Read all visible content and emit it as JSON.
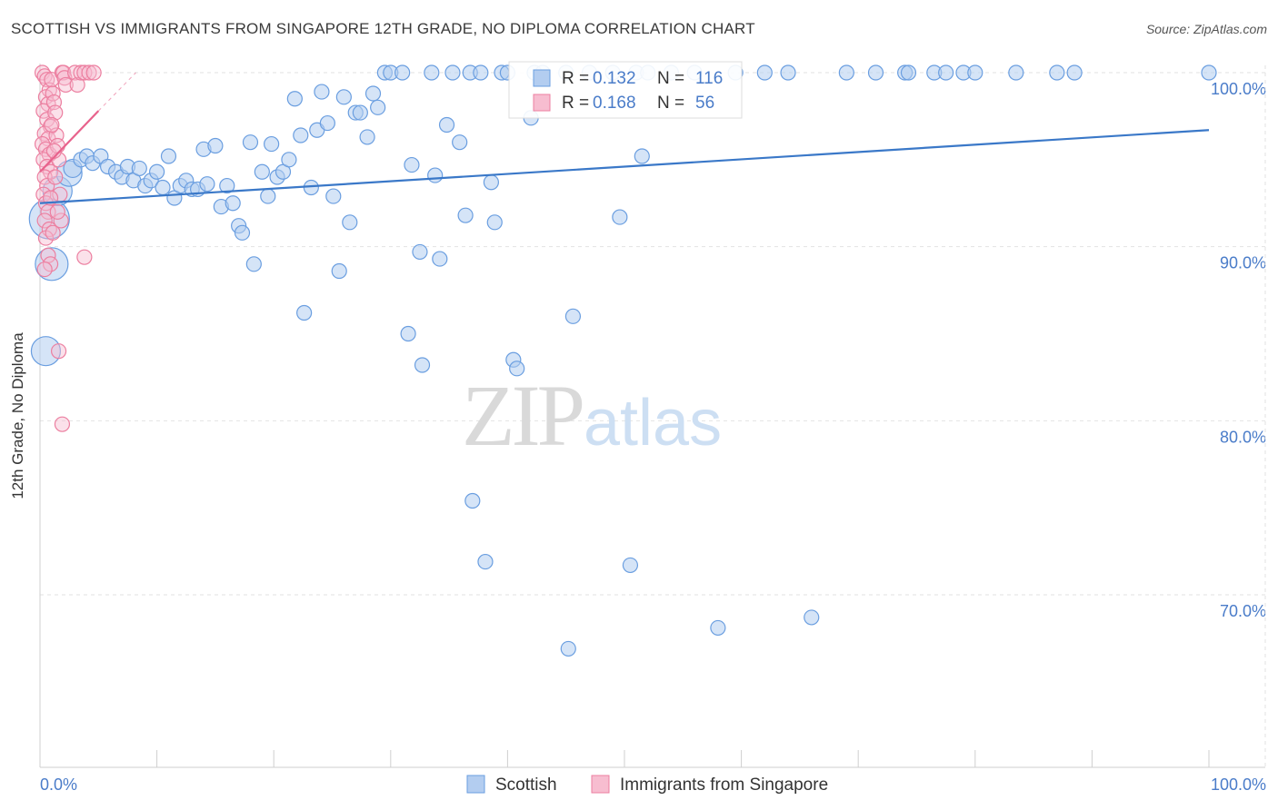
{
  "title": "SCOTTISH VS IMMIGRANTS FROM SINGAPORE 12TH GRADE, NO DIPLOMA CORRELATION CHART",
  "source": "Source: ZipAtlas.com",
  "watermark": {
    "zip": "ZIP",
    "atlas": "atlas"
  },
  "colors": {
    "scottish": "#6a9ee0",
    "scottish_fill": "#b3cdf0",
    "singapore": "#ec7fa0",
    "singapore_fill": "#f7bdd0",
    "trend_blue": "#3a78c8",
    "trend_pink": "#e8628c",
    "axis_text": "#4a7cc9",
    "grid": "#e2e2e2"
  },
  "legend_box": {
    "rows": [
      {
        "r_label": "R =",
        "r_value": "0.132",
        "n_label": "N =",
        "n_value": "116"
      },
      {
        "r_label": "R =",
        "r_value": "0.168",
        "n_label": "N =",
        "n_value": "56"
      }
    ]
  },
  "chart_data": {
    "type": "scatter",
    "title": "SCOTTISH VS IMMIGRANTS FROM SINGAPORE 12TH GRADE, NO DIPLOMA CORRELATION CHART",
    "xlabel": "",
    "ylabel": "12th Grade, No Diploma",
    "xlim": [
      0,
      100
    ],
    "ylim": [
      61,
      101
    ],
    "x_tick_labels": [
      "0.0%",
      "100.0%"
    ],
    "y_tick_labels": [
      {
        "value": 100,
        "label": "100.0%"
      },
      {
        "value": 90,
        "label": "90.0%"
      },
      {
        "value": 80,
        "label": "80.0%"
      },
      {
        "value": 70,
        "label": "70.0%"
      }
    ],
    "grid": true,
    "legend_position": "bottom",
    "series": [
      {
        "name": "Scottish",
        "trend": {
          "x0": 0,
          "y0": 92.5,
          "x1": 100,
          "y1": 96.7
        },
        "points": [
          [
            0.8,
            91.6,
            22
          ],
          [
            1.0,
            89.0,
            18
          ],
          [
            0.5,
            84.0,
            16
          ],
          [
            1.5,
            93.2,
            16
          ],
          [
            2.5,
            94.2,
            14
          ],
          [
            2.8,
            94.5,
            10
          ],
          [
            3.5,
            95.0,
            8
          ],
          [
            4.0,
            95.2,
            8
          ],
          [
            4.5,
            94.8,
            8
          ],
          [
            5.2,
            95.2,
            8
          ],
          [
            5.8,
            94.6,
            8
          ],
          [
            6.5,
            94.3,
            8
          ],
          [
            7.0,
            94.0,
            8
          ],
          [
            7.5,
            94.6,
            8
          ],
          [
            8.0,
            93.8,
            8
          ],
          [
            8.5,
            94.5,
            8
          ],
          [
            9.0,
            93.5,
            8
          ],
          [
            9.5,
            93.8,
            8
          ],
          [
            10.0,
            94.3,
            8
          ],
          [
            10.5,
            93.4,
            8
          ],
          [
            11.0,
            95.2,
            8
          ],
          [
            11.5,
            92.8,
            8
          ],
          [
            12.0,
            93.5,
            8
          ],
          [
            12.5,
            93.8,
            8
          ],
          [
            13.0,
            93.3,
            8
          ],
          [
            13.5,
            93.3,
            8
          ],
          [
            14.0,
            95.6,
            8
          ],
          [
            14.3,
            93.6,
            8
          ],
          [
            15.0,
            95.8,
            8
          ],
          [
            15.5,
            92.3,
            8
          ],
          [
            16.0,
            93.5,
            8
          ],
          [
            16.5,
            92.5,
            8
          ],
          [
            17.0,
            91.2,
            8
          ],
          [
            17.3,
            90.8,
            8
          ],
          [
            18.0,
            96.0,
            8
          ],
          [
            18.3,
            89.0,
            8
          ],
          [
            19.0,
            94.3,
            8
          ],
          [
            19.5,
            92.9,
            8
          ],
          [
            19.8,
            95.9,
            8
          ],
          [
            20.3,
            94.0,
            8
          ],
          [
            20.8,
            94.3,
            8
          ],
          [
            21.3,
            95.0,
            8
          ],
          [
            21.8,
            98.5,
            8
          ],
          [
            22.3,
            96.4,
            8
          ],
          [
            22.6,
            86.2,
            8
          ],
          [
            23.2,
            93.4,
            8
          ],
          [
            23.7,
            96.7,
            8
          ],
          [
            24.1,
            98.9,
            8
          ],
          [
            24.6,
            97.1,
            8
          ],
          [
            25.1,
            92.9,
            8
          ],
          [
            25.6,
            88.6,
            8
          ],
          [
            26.0,
            98.6,
            8
          ],
          [
            26.5,
            91.4,
            8
          ],
          [
            27.0,
            97.7,
            8
          ],
          [
            27.4,
            97.7,
            8
          ],
          [
            28.0,
            96.3,
            8
          ],
          [
            28.5,
            98.8,
            8
          ],
          [
            28.9,
            98.0,
            8
          ],
          [
            29.5,
            100,
            8
          ],
          [
            30.0,
            100,
            8
          ],
          [
            31.0,
            100,
            8
          ],
          [
            31.5,
            85.0,
            8
          ],
          [
            31.8,
            94.7,
            8
          ],
          [
            32.5,
            89.7,
            8
          ],
          [
            32.7,
            83.2,
            8
          ],
          [
            33.5,
            100,
            8
          ],
          [
            33.8,
            94.1,
            8
          ],
          [
            34.2,
            89.3,
            8
          ],
          [
            34.8,
            97.0,
            8
          ],
          [
            35.3,
            100,
            8
          ],
          [
            35.9,
            96.0,
            8
          ],
          [
            36.4,
            91.8,
            8
          ],
          [
            36.8,
            100,
            8
          ],
          [
            37.0,
            75.4,
            8
          ],
          [
            37.7,
            100,
            8
          ],
          [
            38.1,
            71.9,
            8
          ],
          [
            38.6,
            93.7,
            8
          ],
          [
            38.9,
            91.4,
            8
          ],
          [
            39.5,
            100,
            8
          ],
          [
            40.0,
            100,
            8
          ],
          [
            40.5,
            83.5,
            8
          ],
          [
            40.8,
            83.0,
            8
          ],
          [
            42.0,
            97.4,
            8
          ],
          [
            42.3,
            100,
            8
          ],
          [
            43.0,
            100,
            8
          ],
          [
            45.0,
            100,
            8
          ],
          [
            45.2,
            66.9,
            8
          ],
          [
            45.6,
            86.0,
            8
          ],
          [
            47.0,
            100,
            8
          ],
          [
            49.0,
            100,
            8
          ],
          [
            49.6,
            91.7,
            8
          ],
          [
            50.5,
            71.7,
            8
          ],
          [
            51.0,
            100,
            8
          ],
          [
            51.5,
            95.2,
            8
          ],
          [
            52.0,
            100,
            8
          ],
          [
            54.0,
            100,
            8
          ],
          [
            56.0,
            100,
            8
          ],
          [
            58.0,
            68.1,
            8
          ],
          [
            59.5,
            100,
            8
          ],
          [
            62.0,
            100,
            8
          ],
          [
            64.0,
            100,
            8
          ],
          [
            66.0,
            68.7,
            8
          ],
          [
            69.0,
            100,
            8
          ],
          [
            71.5,
            100,
            8
          ],
          [
            74.0,
            100,
            8
          ],
          [
            74.3,
            100,
            8
          ],
          [
            76.5,
            100,
            8
          ],
          [
            77.5,
            100,
            8
          ],
          [
            79.0,
            100,
            8
          ],
          [
            80.0,
            100,
            8
          ],
          [
            83.5,
            100,
            8
          ],
          [
            87.0,
            100,
            8
          ],
          [
            88.5,
            100,
            8
          ],
          [
            100,
            100,
            8
          ]
        ]
      },
      {
        "name": "Immigrants from Singapore",
        "trend": {
          "x0": 0,
          "y0": 94.3,
          "x1": 5.0,
          "y1": 97.8
        },
        "trend_dash": {
          "x0": 5.0,
          "y0": 97.8,
          "x1": 8.2,
          "y1": 100.0
        },
        "points": [
          [
            0.2,
            100,
            8
          ],
          [
            0.4,
            99.8,
            8
          ],
          [
            0.6,
            99.6,
            8
          ],
          [
            0.8,
            99.0,
            8
          ],
          [
            0.5,
            98.6,
            8
          ],
          [
            0.7,
            98.2,
            8
          ],
          [
            0.3,
            97.8,
            8
          ],
          [
            0.6,
            97.3,
            8
          ],
          [
            0.9,
            96.9,
            8
          ],
          [
            0.4,
            96.5,
            8
          ],
          [
            0.7,
            96.2,
            8
          ],
          [
            0.2,
            95.9,
            8
          ],
          [
            0.5,
            95.6,
            8
          ],
          [
            0.8,
            95.3,
            8
          ],
          [
            0.3,
            95.0,
            8
          ],
          [
            0.6,
            94.6,
            8
          ],
          [
            0.9,
            94.3,
            8
          ],
          [
            0.4,
            94.0,
            8
          ],
          [
            0.6,
            93.5,
            8
          ],
          [
            0.3,
            93.0,
            8
          ],
          [
            0.5,
            92.5,
            8
          ],
          [
            0.7,
            92.0,
            8
          ],
          [
            0.4,
            91.5,
            8
          ],
          [
            0.8,
            91.0,
            8
          ],
          [
            0.5,
            90.5,
            8
          ],
          [
            0.7,
            89.5,
            8
          ],
          [
            0.9,
            89.0,
            8
          ],
          [
            0.4,
            88.7,
            8
          ],
          [
            1.0,
            99.6,
            8
          ],
          [
            1.1,
            98.8,
            8
          ],
          [
            1.2,
            98.3,
            8
          ],
          [
            1.3,
            97.7,
            8
          ],
          [
            1.4,
            96.4,
            8
          ],
          [
            1.5,
            95.8,
            8
          ],
          [
            1.6,
            95.0,
            8
          ],
          [
            1.7,
            93.0,
            8
          ],
          [
            1.8,
            91.5,
            8
          ],
          [
            1.9,
            100,
            8
          ],
          [
            2.0,
            100,
            8
          ],
          [
            2.1,
            99.7,
            8
          ],
          [
            2.2,
            99.3,
            8
          ],
          [
            1.6,
            84.0,
            8
          ],
          [
            1.9,
            79.8,
            8
          ],
          [
            3.0,
            100,
            8
          ],
          [
            3.2,
            99.3,
            8
          ],
          [
            3.5,
            100,
            8
          ],
          [
            3.8,
            100,
            8
          ],
          [
            3.8,
            89.4,
            8
          ],
          [
            4.2,
            100,
            8
          ],
          [
            4.6,
            100,
            8
          ],
          [
            1.0,
            97.0,
            8
          ],
          [
            1.2,
            95.5,
            8
          ],
          [
            1.3,
            94.0,
            8
          ],
          [
            0.9,
            92.8,
            8
          ],
          [
            1.5,
            92.0,
            8
          ],
          [
            1.1,
            90.8,
            8
          ]
        ]
      }
    ]
  }
}
